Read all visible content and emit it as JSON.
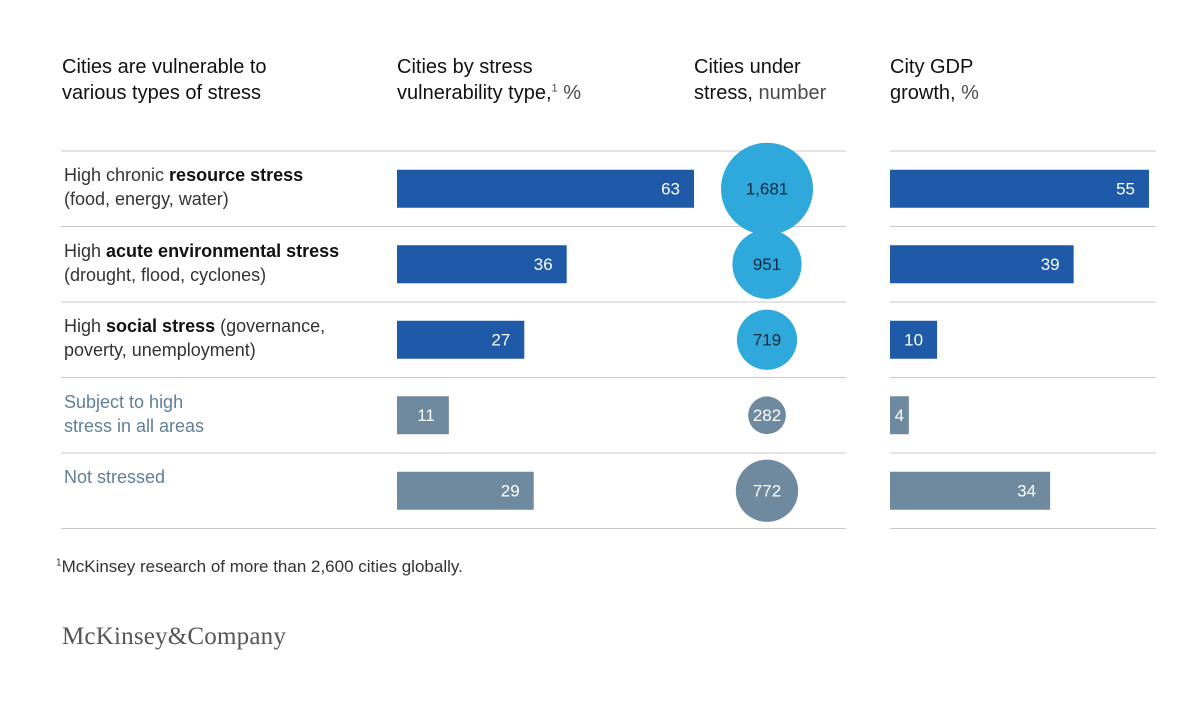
{
  "headers": {
    "col1": [
      "Cities are vulnerable to",
      "various types of stress"
    ],
    "col2_line1": "Cities by stress",
    "col2_line2": "vulnerability type,",
    "col2_sup": "1",
    "col2_unit": "%",
    "col3_line1": "Cities under",
    "col3_line2": "stress,",
    "col3_unit": "number",
    "col4_line1": "City GDP",
    "col4_line2": "growth,",
    "col4_unit": "%"
  },
  "rows": [
    {
      "pre": "High chronic ",
      "bold": "resource stress",
      "post": "",
      "line2": "(food, energy, water)",
      "style": "primary"
    },
    {
      "pre": "High ",
      "bold": "acute environmental stress",
      "post": "",
      "line2": "(drought, flood, cyclones)",
      "style": "primary"
    },
    {
      "pre": "High ",
      "bold": "social stress",
      "post": " (governance,",
      "line2": "poverty, unemployment)",
      "style": "primary"
    },
    {
      "pre": "Subject to high",
      "bold": "",
      "post": "",
      "line2": "stress in all areas",
      "style": "grey"
    },
    {
      "pre": "Not stressed",
      "bold": "",
      "post": "",
      "line2": "",
      "style": "grey"
    }
  ],
  "chart_data": {
    "type": "bar",
    "categories": [
      "High chronic resource stress (food, energy, water)",
      "High acute environmental stress (drought, flood, cyclones)",
      "High social stress (governance, poverty, unemployment)",
      "Subject to high stress in all areas",
      "Not stressed"
    ],
    "series": [
      {
        "name": "Cities by stress vulnerability type, %",
        "values": [
          63,
          36,
          27,
          11,
          29
        ],
        "labels": [
          "63",
          "36",
          "27",
          "11",
          "29"
        ]
      },
      {
        "name": "Cities under stress, number",
        "values": [
          1681,
          951,
          719,
          282,
          772
        ],
        "labels": [
          "1,681",
          "951",
          "719",
          "282",
          "772"
        ]
      },
      {
        "name": "City GDP growth, %",
        "values": [
          55,
          39,
          10,
          4,
          34
        ],
        "labels": [
          "55",
          "39",
          "10",
          "4",
          "34"
        ]
      }
    ],
    "colors": {
      "bar_primary": "#1f5aa8",
      "bar_grey": "#6f8a9e",
      "bubble_primary": "#2fa8dc",
      "bubble_grey": "#6f8a9e",
      "divider": "#c8c8c8"
    },
    "grid": false
  },
  "footnote": {
    "sup": "1",
    "text": "McKinsey research of more than 2,600 cities globally."
  },
  "logo": "McKinsey&Company"
}
